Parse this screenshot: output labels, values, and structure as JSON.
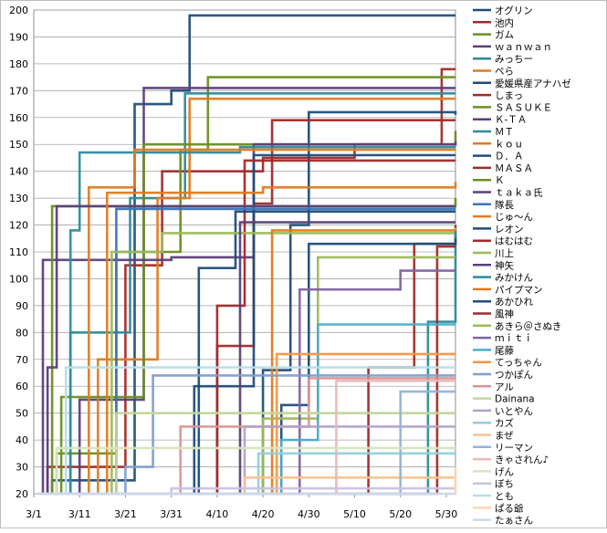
{
  "chart_data": {
    "type": "line",
    "x_ticks": [
      "3/1",
      "3/11",
      "3/21",
      "3/31",
      "4/10",
      "4/20",
      "4/30",
      "5/10",
      "5/20",
      "5/30"
    ],
    "ylim": [
      20,
      200
    ],
    "y_ticks": [
      20,
      30,
      40,
      50,
      60,
      70,
      80,
      90,
      100,
      110,
      120,
      130,
      140,
      150,
      160,
      170,
      180,
      190,
      200
    ],
    "grid": true,
    "legend_position": "right",
    "series": [
      {
        "name": "オグリン",
        "color": "#1f4e79",
        "steps": [
          [
            1,
            20
          ],
          [
            4,
            25
          ],
          [
            22,
            165
          ],
          [
            30,
            170
          ],
          [
            34,
            198
          ],
          [
            92,
            198
          ]
        ]
      },
      {
        "name": "池内",
        "color": "#a12a2a",
        "steps": [
          [
            1,
            20
          ],
          [
            3,
            30
          ],
          [
            20,
            105
          ],
          [
            28,
            140
          ],
          [
            50,
            145
          ],
          [
            70,
            150
          ],
          [
            89,
            178
          ],
          [
            92,
            178
          ]
        ]
      },
      {
        "name": "ガム",
        "color": "#6b8e23",
        "steps": [
          [
            1,
            20
          ],
          [
            5,
            35
          ],
          [
            18,
            110
          ],
          [
            32,
            148
          ],
          [
            38,
            175
          ],
          [
            92,
            175
          ]
        ]
      },
      {
        "name": "ｗａｎｗａｎ",
        "color": "#5b3f7a",
        "steps": [
          [
            1,
            20
          ],
          [
            10,
            55
          ],
          [
            24,
            171
          ],
          [
            92,
            171
          ]
        ]
      },
      {
        "name": "みっちー",
        "color": "#2e8b9a",
        "steps": [
          [
            1,
            20
          ],
          [
            8,
            80
          ],
          [
            21,
            130
          ],
          [
            33,
            169
          ],
          [
            92,
            169
          ]
        ]
      },
      {
        "name": "ペら",
        "color": "#e07b20",
        "steps": [
          [
            1,
            20
          ],
          [
            14,
            70
          ],
          [
            27,
            130
          ],
          [
            34,
            167
          ],
          [
            92,
            167
          ]
        ]
      },
      {
        "name": "愛媛県産アナハゼ",
        "color": "#1f4e79",
        "steps": [
          [
            1,
            20
          ],
          [
            50,
            66
          ],
          [
            56,
            120
          ],
          [
            60,
            162
          ],
          [
            92,
            161
          ]
        ]
      },
      {
        "name": "しまっ",
        "color": "#a12a2a",
        "steps": [
          [
            1,
            20
          ],
          [
            40,
            75
          ],
          [
            48,
            128
          ],
          [
            52,
            159
          ],
          [
            92,
            159
          ]
        ]
      },
      {
        "name": "ＳＡＳＵＫＥ",
        "color": "#6b8e23",
        "steps": [
          [
            1,
            20
          ],
          [
            6,
            56
          ],
          [
            24,
            150
          ],
          [
            92,
            155
          ]
        ]
      },
      {
        "name": "Ｋ-ＴＡ",
        "color": "#5b3f7a",
        "steps": [
          [
            1,
            20
          ],
          [
            2,
            107
          ],
          [
            30,
            108
          ],
          [
            48,
            150
          ],
          [
            92,
            151
          ]
        ]
      },
      {
        "name": "ＭＴ",
        "color": "#2e8b9a",
        "steps": [
          [
            1,
            20
          ],
          [
            8,
            118
          ],
          [
            10,
            147
          ],
          [
            45,
            149
          ],
          [
            92,
            149
          ]
        ]
      },
      {
        "name": "ｋｏｕ",
        "color": "#e07b20",
        "steps": [
          [
            1,
            20
          ],
          [
            12,
            134
          ],
          [
            22,
            148
          ],
          [
            92,
            148
          ]
        ]
      },
      {
        "name": "Ｄ．Ａ",
        "color": "#1f4e79",
        "steps": [
          [
            1,
            20
          ],
          [
            35,
            60
          ],
          [
            48,
            146
          ],
          [
            92,
            146
          ]
        ]
      },
      {
        "name": "ＭＡＳＡ",
        "color": "#a12a2a",
        "steps": [
          [
            1,
            20
          ],
          [
            40,
            90
          ],
          [
            46,
            144
          ],
          [
            92,
            144
          ]
        ]
      },
      {
        "name": "Ｋ",
        "color": "#6b8e23",
        "steps": [
          [
            1,
            20
          ],
          [
            4,
            127
          ],
          [
            92,
            130
          ]
        ]
      },
      {
        "name": "ｔａｋａ氏",
        "color": "#5b3f7a",
        "steps": [
          [
            1,
            20
          ],
          [
            3,
            67
          ],
          [
            5,
            127
          ],
          [
            92,
            127
          ]
        ]
      },
      {
        "name": "隊長",
        "color": "#3b73b9",
        "steps": [
          [
            1,
            20
          ],
          [
            18,
            126
          ],
          [
            92,
            126
          ]
        ]
      },
      {
        "name": "じゅ〜ん",
        "color": "#e07b20",
        "steps": [
          [
            1,
            20
          ],
          [
            16,
            132
          ],
          [
            50,
            134
          ],
          [
            92,
            136
          ]
        ]
      },
      {
        "name": "レオン",
        "color": "#1f4e79",
        "steps": [
          [
            1,
            20
          ],
          [
            36,
            104
          ],
          [
            44,
            125
          ],
          [
            92,
            125
          ]
        ]
      },
      {
        "name": "はむはむ",
        "color": "#a12a2a",
        "steps": [
          [
            1,
            20
          ],
          [
            73,
            67
          ],
          [
            83,
            113
          ],
          [
            92,
            120
          ]
        ]
      },
      {
        "name": "川上",
        "color": "#9bbb59",
        "steps": [
          [
            1,
            20
          ],
          [
            17,
            110
          ],
          [
            28,
            117
          ],
          [
            92,
            119
          ]
        ]
      },
      {
        "name": "神矢",
        "color": "#5b3f7a",
        "steps": [
          [
            1,
            20
          ],
          [
            45,
            121
          ],
          [
            92,
            121
          ]
        ]
      },
      {
        "name": "みかけん",
        "color": "#2e8b9a",
        "steps": [
          [
            1,
            20
          ],
          [
            86,
            84
          ],
          [
            92,
            118
          ]
        ]
      },
      {
        "name": "パイプマン",
        "color": "#e07b20",
        "steps": [
          [
            1,
            20
          ],
          [
            52,
            118
          ],
          [
            92,
            118
          ]
        ]
      },
      {
        "name": "あかひれ",
        "color": "#1f4e79",
        "steps": [
          [
            1,
            20
          ],
          [
            54,
            53
          ],
          [
            60,
            113
          ],
          [
            92,
            115
          ]
        ]
      },
      {
        "name": "風神",
        "color": "#a12a2a",
        "steps": [
          [
            1,
            20
          ],
          [
            88,
            112
          ],
          [
            92,
            112
          ]
        ]
      },
      {
        "name": "あきら＠さぬき",
        "color": "#9bbb59",
        "steps": [
          [
            1,
            20
          ],
          [
            50,
            48
          ],
          [
            62,
            108
          ],
          [
            92,
            108
          ]
        ]
      },
      {
        "name": "ｍｉｔｉ",
        "color": "#8064a2",
        "steps": [
          [
            1,
            20
          ],
          [
            58,
            96
          ],
          [
            80,
            103
          ],
          [
            92,
            103
          ]
        ]
      },
      {
        "name": "尾藤",
        "color": "#4bacc6",
        "steps": [
          [
            1,
            20
          ],
          [
            54,
            40
          ],
          [
            62,
            83
          ],
          [
            92,
            83
          ]
        ]
      },
      {
        "name": "てっちゃん",
        "color": "#f79646",
        "steps": [
          [
            1,
            20
          ],
          [
            53,
            72
          ],
          [
            92,
            72
          ]
        ]
      },
      {
        "name": "つかぽん",
        "color": "#7f9fcf",
        "steps": [
          [
            1,
            20
          ],
          [
            20,
            30
          ],
          [
            26,
            64
          ],
          [
            92,
            64
          ]
        ]
      },
      {
        "name": "アル",
        "color": "#d99694",
        "steps": [
          [
            1,
            20
          ],
          [
            32,
            45
          ],
          [
            60,
            63
          ],
          [
            92,
            63
          ]
        ]
      },
      {
        "name": "Dainana",
        "color": "#c3d69b",
        "steps": [
          [
            1,
            20
          ],
          [
            18,
            50
          ],
          [
            92,
            50
          ]
        ]
      },
      {
        "name": "いとやん",
        "color": "#b3a2c7",
        "steps": [
          [
            1,
            20
          ],
          [
            46,
            45
          ],
          [
            92,
            45
          ]
        ]
      },
      {
        "name": "カズ",
        "color": "#93cddd",
        "steps": [
          [
            1,
            20
          ],
          [
            49,
            35
          ],
          [
            92,
            35
          ]
        ]
      },
      {
        "name": "まぜ",
        "color": "#fac090",
        "steps": [
          [
            1,
            20
          ],
          [
            46,
            26
          ],
          [
            92,
            26
          ]
        ]
      },
      {
        "name": "リーマン",
        "color": "#95b3d7",
        "steps": [
          [
            1,
            20
          ],
          [
            80,
            58
          ],
          [
            92,
            58
          ]
        ]
      },
      {
        "name": "きゃされん♪",
        "color": "#e6b9b8",
        "steps": [
          [
            1,
            20
          ],
          [
            66,
            62
          ],
          [
            92,
            62
          ]
        ]
      },
      {
        "name": "げん",
        "color": "#d7e4bd",
        "steps": [
          [
            1,
            20
          ],
          [
            5,
            37
          ],
          [
            92,
            37
          ]
        ]
      },
      {
        "name": "ぼち",
        "color": "#ccc1da",
        "steps": [
          [
            1,
            20
          ],
          [
            30,
            22
          ],
          [
            92,
            22
          ]
        ]
      },
      {
        "name": "とも",
        "color": "#b7dee8",
        "steps": [
          [
            1,
            20
          ],
          [
            7,
            67
          ],
          [
            92,
            67
          ]
        ]
      },
      {
        "name": "ぱる爺",
        "color": "#fcd5b5",
        "steps": [
          [
            1,
            20
          ],
          [
            92,
            30
          ]
        ]
      },
      {
        "name": "たぁさん",
        "color": "#c6d9f1",
        "steps": [
          [
            1,
            20
          ],
          [
            92,
            20
          ]
        ]
      }
    ]
  }
}
